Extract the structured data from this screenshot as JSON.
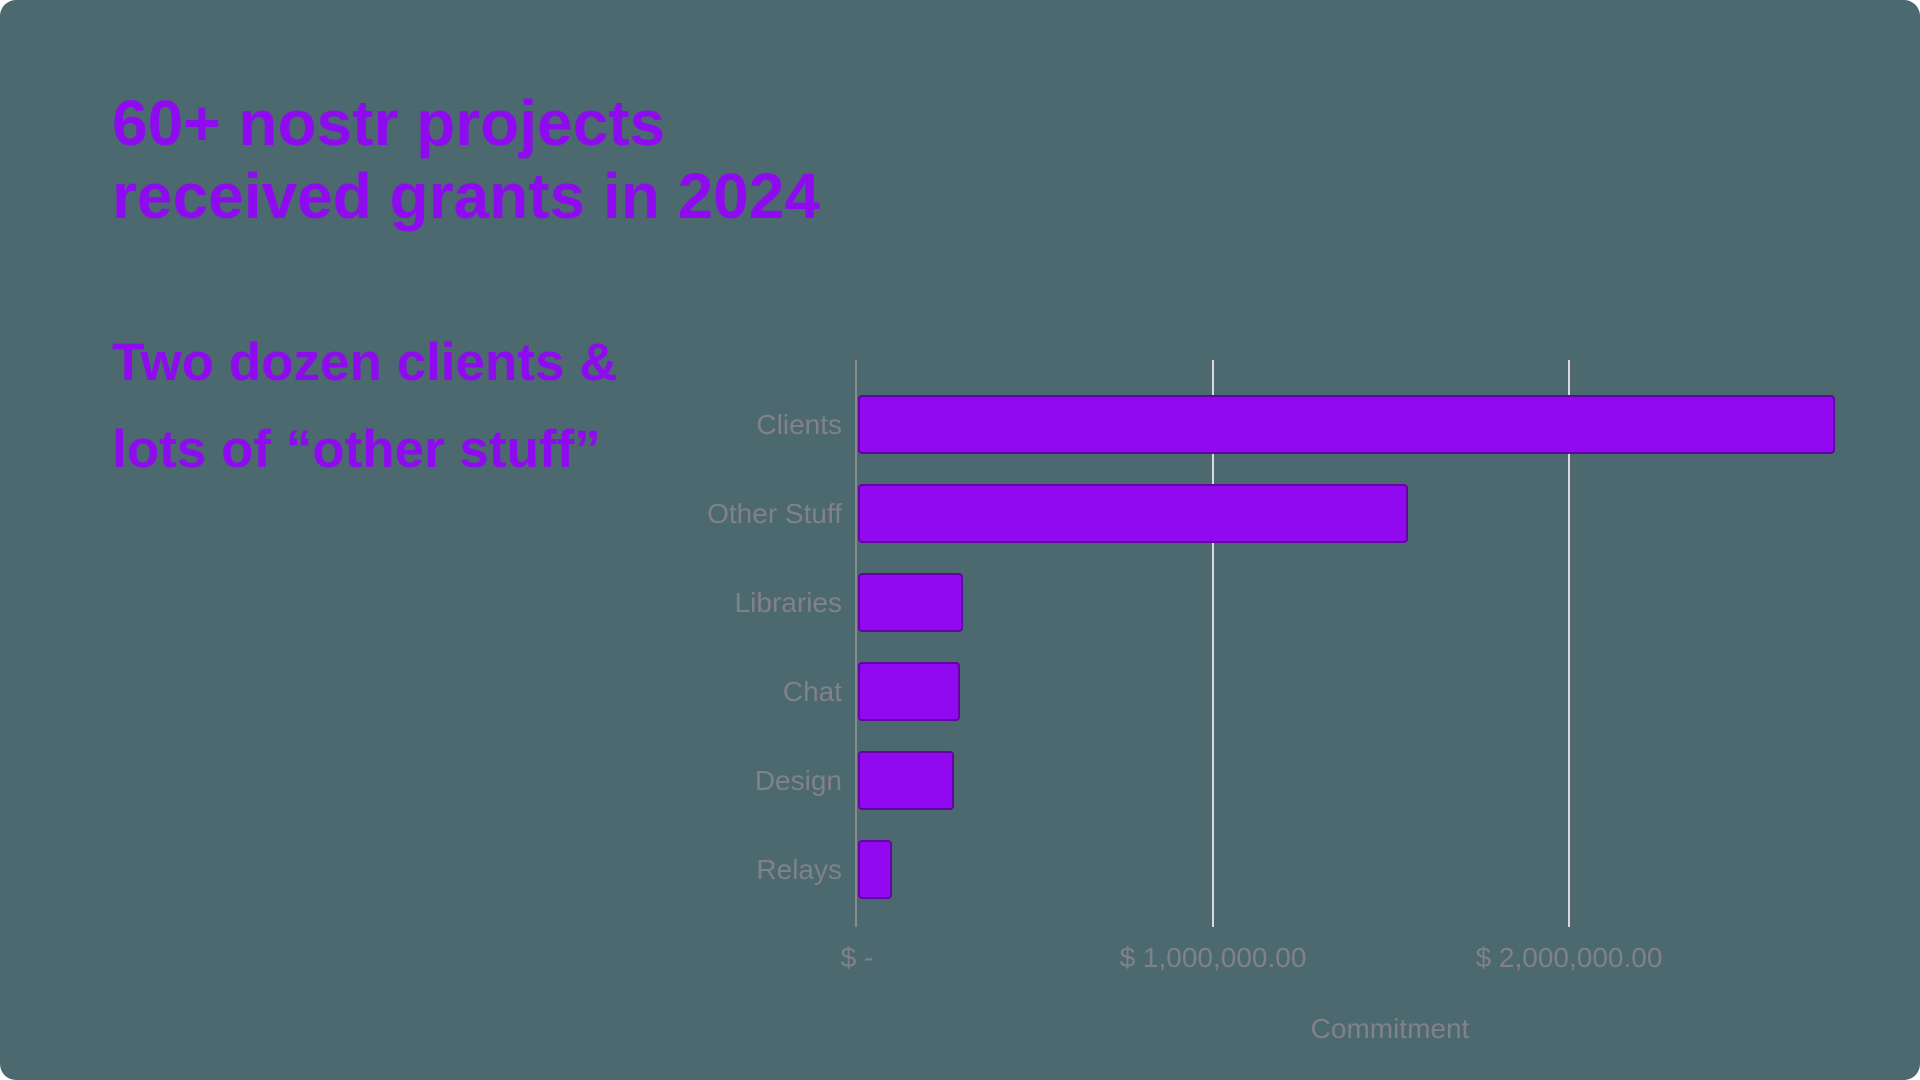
{
  "slide": {
    "background": "#4C6970",
    "accent": "#8F0BEF",
    "title_lines": [
      "60+ nostr projects",
      "received grants in 2024"
    ],
    "subtitle_lines": [
      "Two dozen clients &",
      "lots of “other stuff”"
    ]
  },
  "chart_data": {
    "type": "bar",
    "orientation": "horizontal",
    "title": "60+ nostr projects received grants in 2024",
    "subtitle": "Two dozen clients & lots of “other stuff”",
    "categories": [
      "Clients",
      "Other Stuff",
      "Libraries",
      "Chat",
      "Design",
      "Relays"
    ],
    "values": [
      2745000,
      1545000,
      295000,
      287000,
      270000,
      96000
    ],
    "xlabel": "Commitment",
    "ylabel": "",
    "x_ticks": [
      {
        "value": 0,
        "label": "$ -"
      },
      {
        "value": 1000000,
        "label": "$ 1,000,000.00"
      },
      {
        "value": 2000000,
        "label": "$ 2,000,000.00"
      }
    ],
    "xlim": [
      0,
      2950000
    ],
    "grid": true,
    "legend": false,
    "bar_color": "#9109EF",
    "gridline_color": "#DCD8E2",
    "axis_color": "#8A8A8A",
    "label_color": "#81818A"
  }
}
